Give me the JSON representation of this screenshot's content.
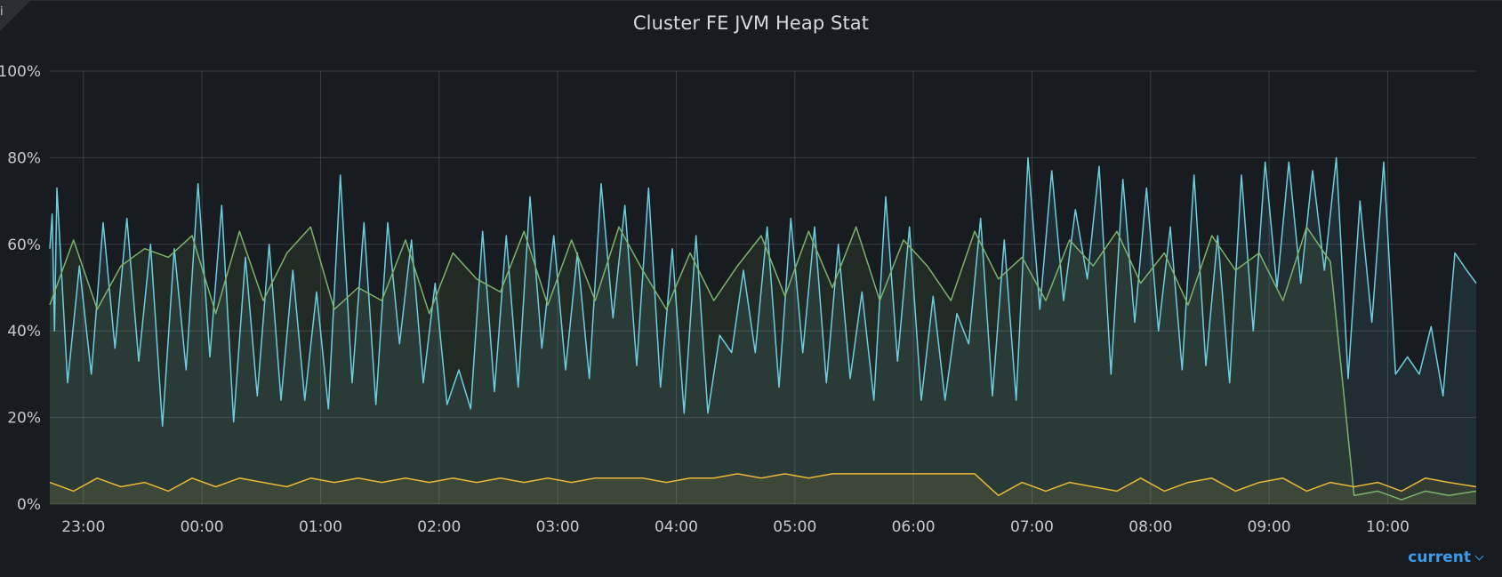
{
  "panel": {
    "title": "Cluster FE JVM Heap Stat",
    "corner_icon": "panel-menu-icon",
    "corner_glyph": "i"
  },
  "legend": {
    "mode_label": "current",
    "chevron_icon": "chevron-down-icon"
  },
  "colors": {
    "background": "#181b1f",
    "grid": "#3a3d42",
    "series_cyan": "#6ccfe0",
    "series_green": "#7eb26d",
    "series_yellow": "#eab839",
    "legend_link": "#3d9ae8"
  },
  "chart_data": {
    "type": "line",
    "title": "Cluster FE JVM Heap Stat",
    "xlabel": "",
    "ylabel": "",
    "grid": true,
    "legend": "bottom-right",
    "x_ticks": [
      "23:00",
      "00:00",
      "01:00",
      "02:00",
      "03:00",
      "04:00",
      "05:00",
      "06:00",
      "07:00",
      "08:00",
      "09:00",
      "10:00"
    ],
    "y_ticks": [
      "0%",
      "20%",
      "40%",
      "60%",
      "80%",
      "100%"
    ],
    "ylim": [
      0,
      100
    ],
    "x_unit": "hours since 22:43",
    "xlim": [
      0,
      12.03
    ],
    "series": [
      {
        "name": "",
        "color": "#6ccfe0",
        "x": [
          0.0,
          0.02,
          0.04,
          0.06,
          0.15,
          0.25,
          0.35,
          0.45,
          0.55,
          0.65,
          0.75,
          0.85,
          0.95,
          1.05,
          1.15,
          1.25,
          1.35,
          1.45,
          1.55,
          1.65,
          1.75,
          1.85,
          1.95,
          2.05,
          2.15,
          2.25,
          2.35,
          2.45,
          2.55,
          2.65,
          2.75,
          2.85,
          2.95,
          3.05,
          3.15,
          3.25,
          3.35,
          3.45,
          3.55,
          3.65,
          3.75,
          3.85,
          3.95,
          4.05,
          4.15,
          4.25,
          4.35,
          4.45,
          4.55,
          4.65,
          4.75,
          4.85,
          4.95,
          5.05,
          5.15,
          5.25,
          5.35,
          5.45,
          5.55,
          5.65,
          5.75,
          5.85,
          5.95,
          6.05,
          6.15,
          6.25,
          6.35,
          6.45,
          6.55,
          6.65,
          6.75,
          6.85,
          6.95,
          7.05,
          7.15,
          7.25,
          7.35,
          7.45,
          7.55,
          7.65,
          7.75,
          7.85,
          7.95,
          8.05,
          8.15,
          8.25,
          8.35,
          8.45,
          8.55,
          8.65,
          8.75,
          8.85,
          8.95,
          9.05,
          9.15,
          9.25,
          9.35,
          9.45,
          9.55,
          9.65,
          9.75,
          9.85,
          9.95,
          10.05,
          10.15,
          10.25,
          10.35,
          10.45,
          10.55,
          10.65,
          10.75,
          10.85,
          10.95,
          11.05,
          11.15,
          11.25,
          11.35,
          11.45,
          11.55,
          11.65,
          11.75,
          11.85,
          11.95,
          12.03
        ],
        "values": [
          59,
          67,
          40,
          73,
          28,
          55,
          30,
          65,
          36,
          66,
          33,
          60,
          18,
          59,
          31,
          74,
          34,
          69,
          19,
          57,
          25,
          60,
          24,
          54,
          24,
          49,
          22,
          76,
          28,
          65,
          23,
          65,
          37,
          61,
          28,
          51,
          23,
          31,
          22,
          63,
          26,
          62,
          27,
          71,
          36,
          62,
          31,
          58,
          29,
          74,
          43,
          69,
          32,
          73,
          27,
          59,
          21,
          62,
          21,
          39,
          35,
          54,
          35,
          64,
          27,
          66,
          35,
          64,
          28,
          60,
          29,
          49,
          24,
          71,
          33,
          64,
          24,
          48,
          24,
          44,
          37,
          66,
          25,
          61,
          24,
          80,
          45,
          77,
          47,
          68,
          52,
          78,
          30,
          75,
          42,
          73,
          40,
          64,
          31,
          76,
          32,
          62,
          28,
          76,
          40,
          79,
          50,
          79,
          51,
          77,
          54,
          80,
          29,
          70,
          42,
          79,
          30,
          34,
          30,
          41,
          25,
          58,
          54,
          51
        ]
      },
      {
        "name": "",
        "color": "#7eb26d",
        "x": [
          0.0,
          0.2,
          0.4,
          0.6,
          0.8,
          1.0,
          1.2,
          1.4,
          1.6,
          1.8,
          2.0,
          2.2,
          2.4,
          2.6,
          2.8,
          3.0,
          3.2,
          3.4,
          3.6,
          3.8,
          4.0,
          4.2,
          4.4,
          4.6,
          4.8,
          5.0,
          5.2,
          5.4,
          5.6,
          5.8,
          6.0,
          6.2,
          6.4,
          6.6,
          6.8,
          7.0,
          7.2,
          7.4,
          7.6,
          7.8,
          8.0,
          8.2,
          8.4,
          8.6,
          8.8,
          9.0,
          9.2,
          9.4,
          9.6,
          9.8,
          10.0,
          10.2,
          10.4,
          10.6,
          10.8,
          11.0,
          11.2,
          11.4,
          11.6,
          11.8,
          12.03
        ],
        "values": [
          46,
          61,
          45,
          55,
          59,
          57,
          62,
          44,
          63,
          47,
          58,
          64,
          45,
          50,
          47,
          61,
          44,
          58,
          52,
          49,
          63,
          46,
          61,
          47,
          64,
          54,
          45,
          58,
          47,
          55,
          62,
          48,
          63,
          50,
          64,
          47,
          61,
          55,
          47,
          63,
          52,
          57,
          47,
          61,
          55,
          63,
          51,
          58,
          46,
          62,
          54,
          58,
          47,
          64,
          56,
          2,
          3,
          1,
          3,
          2,
          3
        ]
      },
      {
        "name": "",
        "color": "#eab839",
        "x": [
          0.0,
          0.2,
          0.4,
          0.6,
          0.8,
          1.0,
          1.2,
          1.4,
          1.6,
          1.8,
          2.0,
          2.2,
          2.4,
          2.6,
          2.8,
          3.0,
          3.2,
          3.4,
          3.6,
          3.8,
          4.0,
          4.2,
          4.4,
          4.6,
          4.8,
          5.0,
          5.2,
          5.4,
          5.6,
          5.8,
          6.0,
          6.2,
          6.4,
          6.6,
          6.8,
          7.0,
          7.2,
          7.4,
          7.6,
          7.8,
          8.0,
          8.2,
          8.4,
          8.6,
          8.8,
          9.0,
          9.2,
          9.4,
          9.6,
          9.8,
          10.0,
          10.2,
          10.4,
          10.6,
          10.8,
          11.0,
          11.2,
          11.4,
          11.6,
          11.8,
          12.03
        ],
        "values": [
          5,
          3,
          6,
          4,
          5,
          3,
          6,
          4,
          6,
          5,
          4,
          6,
          5,
          6,
          5,
          6,
          5,
          6,
          5,
          6,
          5,
          6,
          5,
          6,
          6,
          6,
          5,
          6,
          6,
          7,
          6,
          7,
          6,
          7,
          7,
          7,
          7,
          7,
          7,
          7,
          2,
          5,
          3,
          5,
          4,
          3,
          6,
          3,
          5,
          6,
          3,
          5,
          6,
          3,
          5,
          4,
          5,
          3,
          6,
          5,
          4
        ]
      }
    ]
  }
}
